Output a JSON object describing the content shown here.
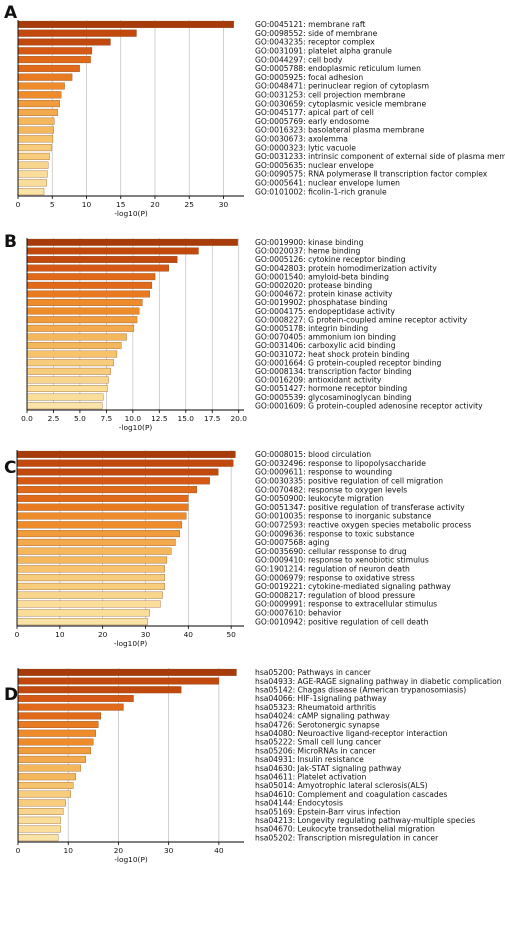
{
  "chart_data": [
    {
      "panel_label": "A",
      "type": "bar",
      "orientation": "horizontal",
      "xlabel": "-log10(P)",
      "xlim": [
        0,
        33
      ],
      "xticks": [
        "0",
        "5",
        "10",
        "15",
        "20",
        "25",
        "30"
      ],
      "categories": [
        "GO:0045121: membrane raft",
        "GO:0098552: side of membrane",
        "GO:0043235: receptor complex",
        "GO:0031091: platelet alpha granule",
        "GO:0044297: cell body",
        "GO:0005788: endoplasmic reticulum lumen",
        "GO:0005925: focal adhesion",
        "GO:0048471: perinuclear region of cytoplasm",
        "GO:0031253: cell projection membrane",
        "GO:0030659: cytoplasmic vesicle membrane",
        "GO:0045177: apical part of cell",
        "GO:0005769: early endosome",
        "GO:0016323: basolateral plasma membrane",
        "GO:0030673: axolemma",
        "GO:0000323: lytic vacuole",
        "GO:0031233: intrinsic component of external side of plasma membrane",
        "GO:0005635: nuclear envelope",
        "GO:0090575: RNA polymerase Ⅱ transcription factor complex",
        "GO:0005641: nuclear envelope lumen",
        "GO:0101002: ficolin-1-rich granule"
      ],
      "values": [
        31.5,
        17.3,
        13.5,
        10.8,
        10.6,
        9.0,
        7.9,
        6.8,
        6.3,
        6.1,
        5.8,
        5.3,
        5.2,
        5.1,
        4.9,
        4.6,
        4.4,
        4.3,
        4.2,
        3.8
      ]
    },
    {
      "panel_label": "B",
      "type": "bar",
      "orientation": "horizontal",
      "xlabel": "-log10(P)",
      "xlim": [
        0,
        20.5
      ],
      "xticks": [
        "0.0",
        "2.5",
        "5.0",
        "7.5",
        "10.0",
        "12.5",
        "15.0",
        "17.5",
        "20.0"
      ],
      "categories": [
        "GO:0019900: kinase binding",
        "GO:0020037: heme binding",
        "GO:0005126: cytokine receptor binding",
        "GO:0042803: protein homodimerization activity",
        "GO:0001540: amyloid-beta binding",
        "GO:0002020: protease binding",
        "GO:0004672: protein kinase activity",
        "GO:0019902: phosphatase binding",
        "GO:0004175: endopeptidase activity",
        "GO:0008227: G protein-coupled amine receptor activity",
        "GO:0005178: integrin binding",
        "GO:0070405: ammonium ion binding",
        "GO:0031406: carboxylic acid binding",
        "GO:0031072: heat shock protein binding",
        "GO:0001664: G protein-coupled receptor binding",
        "GO:0008134: transcription factor binding",
        "GO:0016209: antioxidant activity",
        "GO:0051427: hormone receptor binding",
        "GO:0005539: glycosaminoglycan binding",
        "GO:0001609: G protein-coupled adenosine receptor activity"
      ],
      "values": [
        19.9,
        16.2,
        14.2,
        13.4,
        12.1,
        11.8,
        11.6,
        10.9,
        10.6,
        10.4,
        10.1,
        9.4,
        8.9,
        8.5,
        8.2,
        7.9,
        7.7,
        7.6,
        7.2,
        7.1
      ]
    },
    {
      "panel_label": "C",
      "type": "bar",
      "orientation": "horizontal",
      "xlabel": "-log10(P)",
      "xlim": [
        0,
        53
      ],
      "xticks": [
        "0",
        "10",
        "20",
        "30",
        "40",
        "50"
      ],
      "categories": [
        "GO:0008015: blood circulation",
        "GO:0032496: response to lipopolysaccharide",
        "GO:0009611: response to wounding",
        "GO:0030335: positive regulation of cell migration",
        "GO:0070482: response to oxygen levels",
        "GO:0050900: leukocyte migration",
        "GO:0051347: positive regulation of transferase activity",
        "GO:0010035: response to inorganic substance",
        "GO:0072593: reactive oxygen species metabolic process",
        "GO:0009636: response to toxic substance",
        "GO:0007568: aging",
        "GO:0035690: cellular ressponse to drug",
        "GO:0009410: response to xenobiotic stimulus",
        "GO:1901214: regulation of neuron death",
        "GO:0006979: response to oxidative stress",
        "GO:0019221: cytokine-mediated signaling pathway",
        "GO:0008217: regulation of blood pressure",
        "GO:0009991: response to extracellular stimulus",
        "GO:0007610: behavior",
        "GO:0010942: positive regulation of cell death"
      ],
      "values": [
        51.0,
        50.5,
        47.0,
        45.0,
        42.0,
        40.0,
        40.0,
        39.5,
        38.5,
        38.0,
        37.0,
        36.0,
        35.0,
        34.5,
        34.5,
        34.5,
        34.0,
        33.5,
        31.0,
        30.5
      ]
    },
    {
      "panel_label": "D",
      "type": "bar",
      "orientation": "horizontal",
      "xlabel": "-log10(P)",
      "xlim": [
        0,
        45
      ],
      "xticks": [
        "0",
        "10",
        "20",
        "30",
        "40"
      ],
      "categories": [
        "hsa05200: Pathways in cancer",
        "hsa04933: AGE-RAGE signaling pathway in diabetic complication",
        "hsa05142: Chagas disease (American trypanosomiasis)",
        "hsa04066: HIF-1signaling pathway",
        "hsa05323: Rheumatoid arthritis",
        "hsa04024: cAMP signaling pathway",
        "hsa04726: Serotonergic synapse",
        "hsa04080: Neuroactive ligand-receptor interaction",
        "hsa05222: Small cell lung cancer",
        "hsa05206: MicroRNAs in cancer",
        "hsa04931: Insulin resistance",
        "hsa04630: Jak-STAT signaling pathway",
        "hsa04611: Platelet activation",
        "hsa05014: Amyotrophic lateral sclerosis(ALS)",
        "hsa04610: Complement and coagulation cascades",
        "hsa04144: Endocytosis",
        "hsa05169: Epstein-Barr virus infection",
        "hsa04213: Longevity regulating pathway-multiple species",
        "hsa04670: Leukocyte transedothelial migration",
        "hsa05202: Transcription misregulation in cancer"
      ],
      "values": [
        43.5,
        40.0,
        32.5,
        23.0,
        21.0,
        16.5,
        16.0,
        15.5,
        15.0,
        14.5,
        13.5,
        12.5,
        11.5,
        11.0,
        10.5,
        9.5,
        9.0,
        8.5,
        8.5,
        8.0
      ]
    }
  ]
}
